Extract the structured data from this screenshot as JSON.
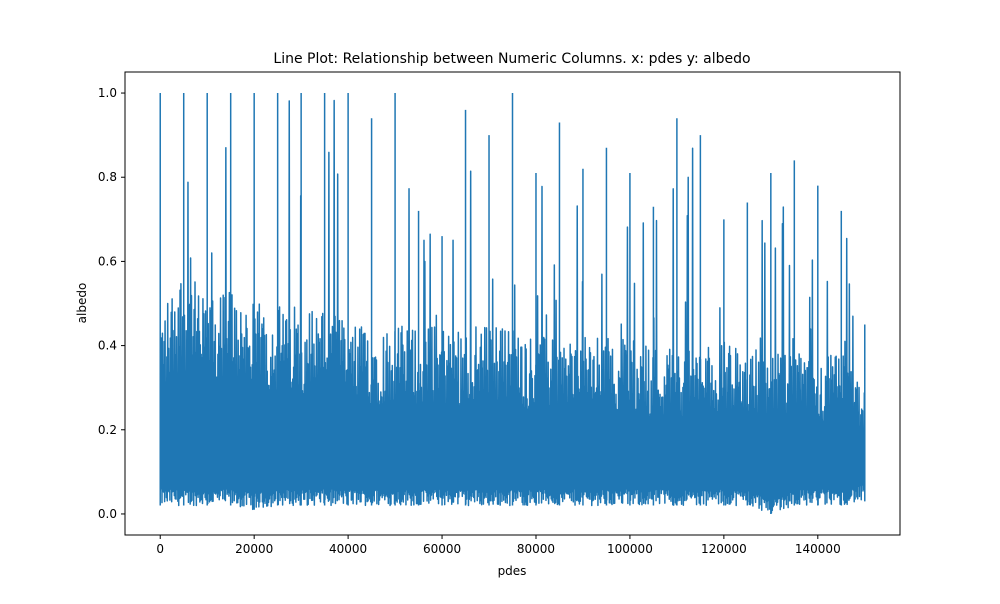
{
  "chart_data": {
    "type": "line",
    "title": "Line Plot: Relationship between Numeric Columns. x: pdes y: albedo",
    "xlabel": "pdes",
    "ylabel": "albedo",
    "xlim": [
      -7500,
      157500
    ],
    "ylim": [
      -0.05,
      1.05
    ],
    "xticks": [
      0,
      20000,
      40000,
      60000,
      80000,
      100000,
      120000,
      140000
    ],
    "xtick_labels": [
      "0",
      "20000",
      "40000",
      "60000",
      "80000",
      "100000",
      "120000",
      "140000"
    ],
    "yticks": [
      0.0,
      0.2,
      0.4,
      0.6,
      0.8,
      1.0
    ],
    "ytick_labels": [
      "0.0",
      "0.2",
      "0.4",
      "0.6",
      "0.8",
      "1.0"
    ],
    "grid": false,
    "legend": "none",
    "series_color": "#1f77b4",
    "series": [
      {
        "x": [
          0,
          5000,
          10000,
          15000,
          20000,
          25000,
          30000,
          35000,
          40000,
          45000,
          50000,
          55000,
          60000,
          65000,
          70000,
          75000,
          80000,
          85000,
          90000,
          95000,
          100000,
          105000,
          110000,
          115000,
          120000,
          125000,
          130000,
          135000,
          140000,
          145000,
          150000
        ],
        "y_min": [
          0.02,
          0.02,
          0.02,
          0.02,
          0.01,
          0.02,
          0.02,
          0.02,
          0.02,
          0.02,
          0.02,
          0.02,
          0.02,
          0.02,
          0.02,
          0.02,
          0.02,
          0.02,
          0.02,
          0.02,
          0.02,
          0.02,
          0.02,
          0.02,
          0.02,
          0.02,
          0.0,
          0.02,
          0.02,
          0.02,
          0.03
        ],
        "y_max": [
          1.0,
          1.0,
          1.0,
          1.0,
          1.0,
          1.0,
          1.0,
          1.0,
          1.0,
          0.94,
          1.0,
          0.72,
          0.66,
          0.96,
          0.9,
          1.0,
          0.81,
          0.93,
          0.82,
          0.87,
          0.81,
          0.73,
          0.94,
          0.9,
          0.7,
          0.74,
          0.81,
          0.84,
          0.78,
          0.72,
          0.45
        ],
        "y_typical_high": [
          0.48,
          0.6,
          0.5,
          0.55,
          0.5,
          0.5,
          0.5,
          0.5,
          0.45,
          0.45,
          0.45,
          0.45,
          0.45,
          0.45,
          0.45,
          0.45,
          0.42,
          0.42,
          0.42,
          0.42,
          0.42,
          0.4,
          0.4,
          0.4,
          0.4,
          0.4,
          0.38,
          0.38,
          0.38,
          0.38,
          0.3
        ]
      }
    ]
  }
}
